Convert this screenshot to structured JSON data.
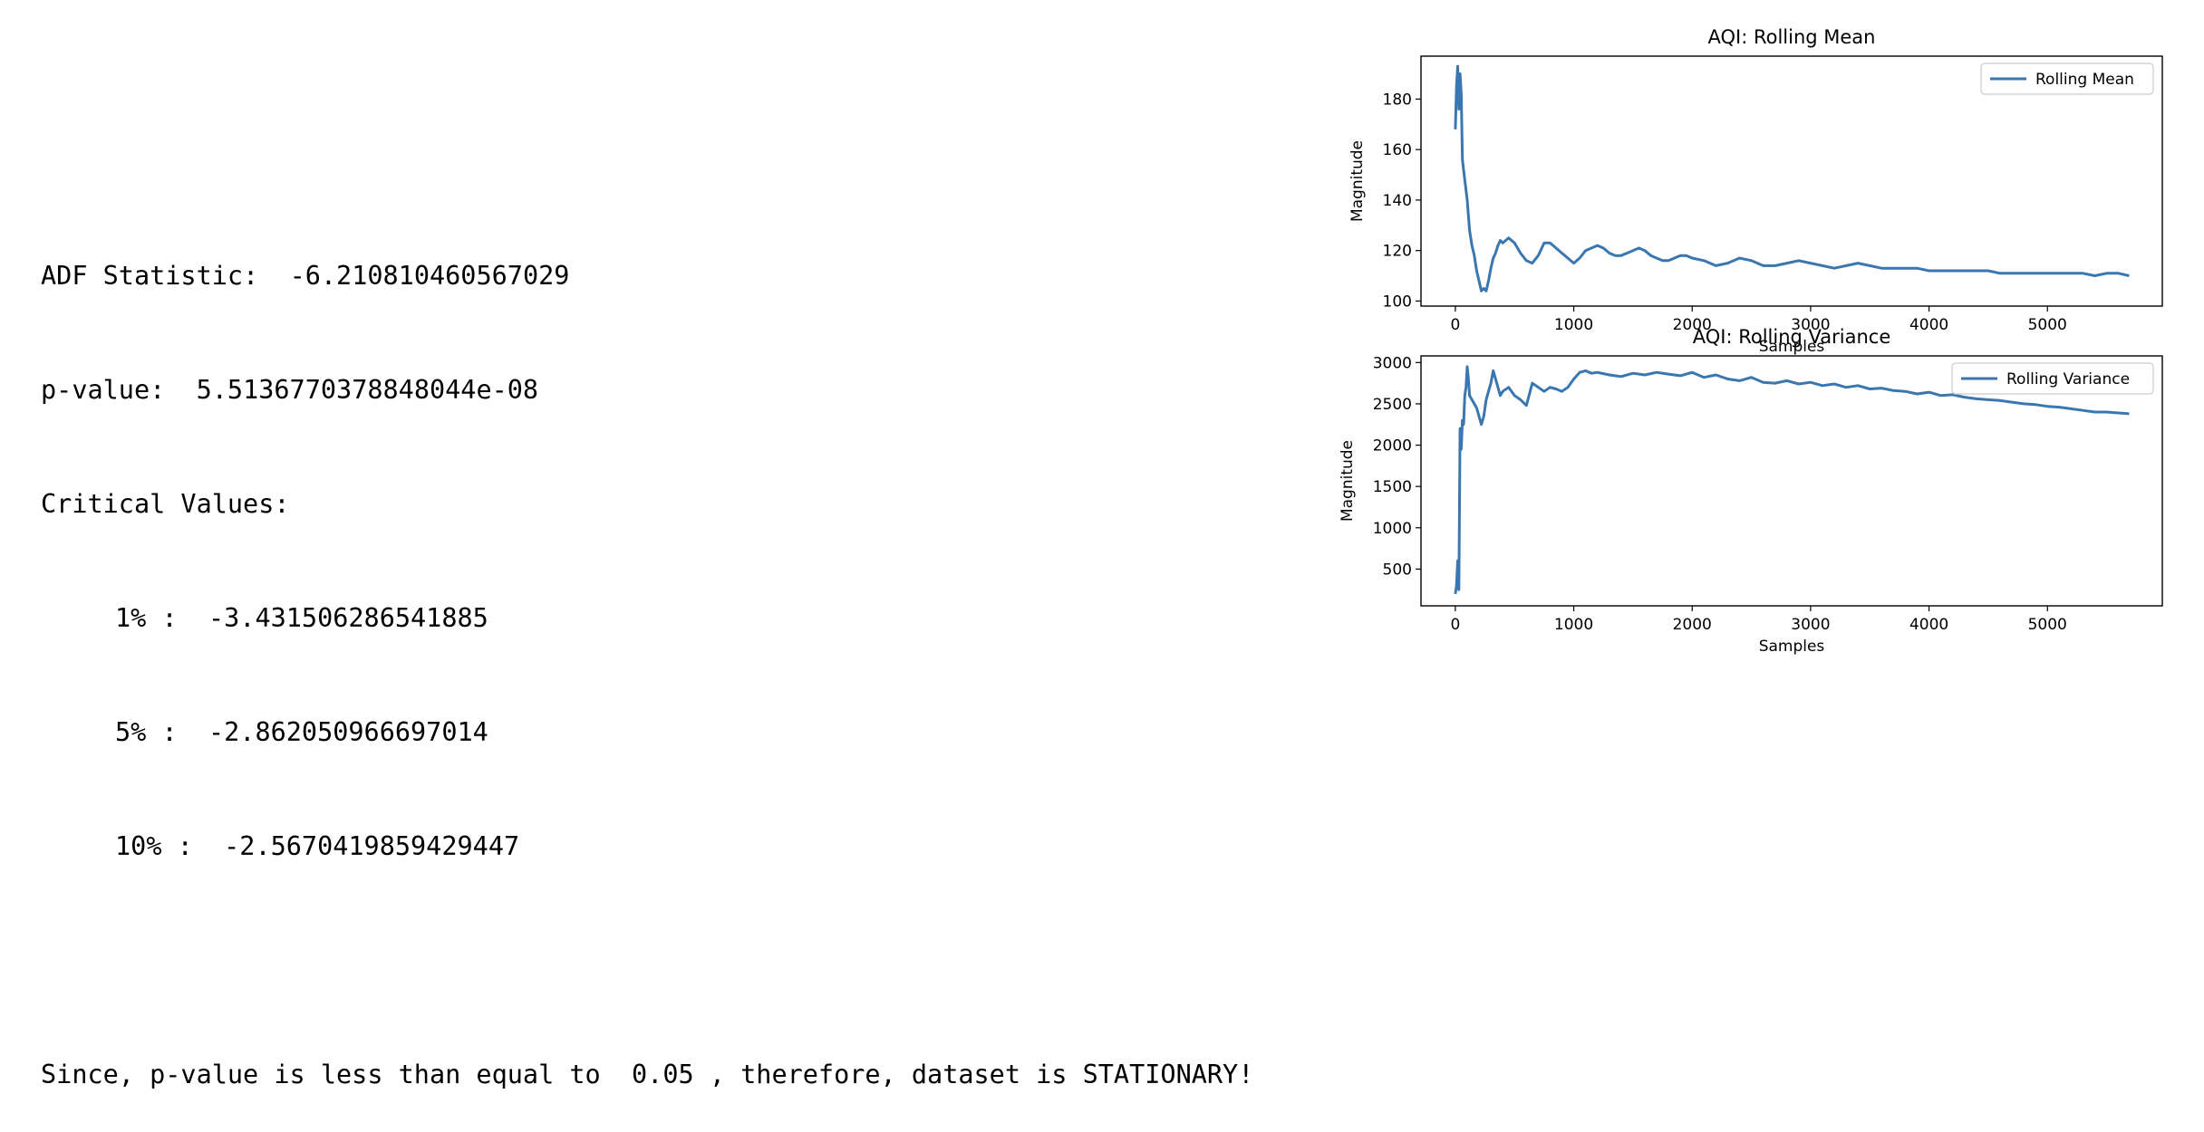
{
  "output": {
    "adf_label": "ADF Statistic: ",
    "adf_value": "-6.210810460567029",
    "pvalue_label": "p-value: ",
    "pvalue_value": "5.5136770378848044e-08",
    "critical_header": "Critical Values:",
    "critical_values": [
      {
        "key": "1% : ",
        "value": "-3.431506286541885"
      },
      {
        "key": "5% : ",
        "value": "-2.862050966697014"
      },
      {
        "key": "10% : ",
        "value": "-2.5670419859429447"
      }
    ],
    "conclusion": "Since, p-value is less than equal to  0.05 , therefore, dataset is STATIONARY!"
  },
  "chart_data": [
    {
      "type": "line",
      "title": "AQI: Rolling Mean",
      "xlabel": "Samples",
      "ylabel": "Magnitude",
      "xlim": [
        -290,
        5970
      ],
      "ylim": [
        98,
        197
      ],
      "xticks": [
        0,
        1000,
        2000,
        3000,
        4000,
        5000
      ],
      "yticks": [
        100,
        120,
        140,
        160,
        180
      ],
      "legend": "top-right",
      "color": "#3a76af",
      "series": [
        {
          "name": "Rolling Mean",
          "x": [
            0,
            10,
            20,
            30,
            40,
            50,
            60,
            80,
            100,
            120,
            140,
            160,
            180,
            200,
            220,
            240,
            260,
            280,
            300,
            320,
            340,
            360,
            380,
            400,
            450,
            500,
            550,
            600,
            650,
            700,
            750,
            800,
            850,
            900,
            950,
            1000,
            1050,
            1100,
            1150,
            1200,
            1250,
            1300,
            1350,
            1400,
            1450,
            1500,
            1550,
            1600,
            1650,
            1700,
            1750,
            1800,
            1850,
            1900,
            1950,
            2000,
            2100,
            2200,
            2300,
            2400,
            2500,
            2600,
            2700,
            2800,
            2900,
            3000,
            3100,
            3200,
            3300,
            3400,
            3500,
            3600,
            3700,
            3800,
            3900,
            4000,
            4100,
            4200,
            4300,
            4400,
            4500,
            4600,
            4700,
            4800,
            4900,
            5000,
            5100,
            5200,
            5300,
            5400,
            5500,
            5600,
            5690
          ],
          "y": [
            168,
            185,
            193,
            176,
            190,
            182,
            156,
            148,
            140,
            128,
            122,
            118,
            112,
            108,
            104,
            105,
            104,
            108,
            113,
            117,
            119,
            122,
            124,
            123,
            125,
            123,
            119,
            116,
            115,
            118,
            123,
            123,
            121,
            119,
            117,
            115,
            117,
            120,
            121,
            122,
            121,
            119,
            118,
            118,
            119,
            120,
            121,
            120,
            118,
            117,
            116,
            116,
            117,
            118,
            118,
            117,
            116,
            114,
            115,
            117,
            116,
            114,
            114,
            115,
            116,
            115,
            114,
            113,
            114,
            115,
            114,
            113,
            113,
            113,
            113,
            112,
            112,
            112,
            112,
            112,
            112,
            111,
            111,
            111,
            111,
            111,
            111,
            111,
            111,
            110,
            111,
            111,
            110
          ]
        }
      ]
    },
    {
      "type": "line",
      "title": "AQI: Rolling Variance",
      "xlabel": "Samples",
      "ylabel": "Magnitude",
      "xlim": [
        -290,
        5970
      ],
      "ylim": [
        55,
        3080
      ],
      "xticks": [
        0,
        1000,
        2000,
        3000,
        4000,
        5000
      ],
      "yticks": [
        500,
        1000,
        1500,
        2000,
        2500,
        3000
      ],
      "legend": "top-right",
      "color": "#3a76af",
      "series": [
        {
          "name": "Rolling Variance",
          "x": [
            0,
            10,
            20,
            30,
            40,
            50,
            60,
            70,
            80,
            90,
            100,
            110,
            120,
            140,
            160,
            180,
            200,
            220,
            240,
            260,
            280,
            300,
            320,
            340,
            360,
            380,
            400,
            450,
            500,
            550,
            600,
            650,
            700,
            750,
            800,
            850,
            900,
            950,
            1000,
            1050,
            1100,
            1150,
            1200,
            1300,
            1400,
            1500,
            1600,
            1700,
            1800,
            1900,
            2000,
            2100,
            2200,
            2300,
            2400,
            2500,
            2600,
            2700,
            2800,
            2900,
            3000,
            3100,
            3200,
            3300,
            3400,
            3500,
            3600,
            3700,
            3800,
            3900,
            4000,
            4100,
            4200,
            4300,
            4400,
            4500,
            4600,
            4700,
            4800,
            4900,
            5000,
            5100,
            5200,
            5300,
            5400,
            5500,
            5600,
            5690
          ],
          "y": [
            200,
            300,
            600,
            250,
            2200,
            1950,
            2300,
            2250,
            2600,
            2700,
            2950,
            2800,
            2600,
            2550,
            2500,
            2450,
            2350,
            2250,
            2350,
            2550,
            2650,
            2750,
            2900,
            2800,
            2700,
            2600,
            2650,
            2700,
            2600,
            2550,
            2480,
            2750,
            2700,
            2650,
            2700,
            2680,
            2650,
            2700,
            2800,
            2880,
            2900,
            2870,
            2880,
            2850,
            2830,
            2870,
            2850,
            2880,
            2860,
            2840,
            2880,
            2820,
            2850,
            2800,
            2780,
            2820,
            2760,
            2750,
            2780,
            2740,
            2760,
            2720,
            2740,
            2700,
            2720,
            2680,
            2690,
            2660,
            2650,
            2620,
            2640,
            2600,
            2610,
            2580,
            2560,
            2550,
            2540,
            2520,
            2500,
            2490,
            2470,
            2460,
            2440,
            2420,
            2400,
            2400,
            2390,
            2380
          ]
        }
      ]
    }
  ]
}
